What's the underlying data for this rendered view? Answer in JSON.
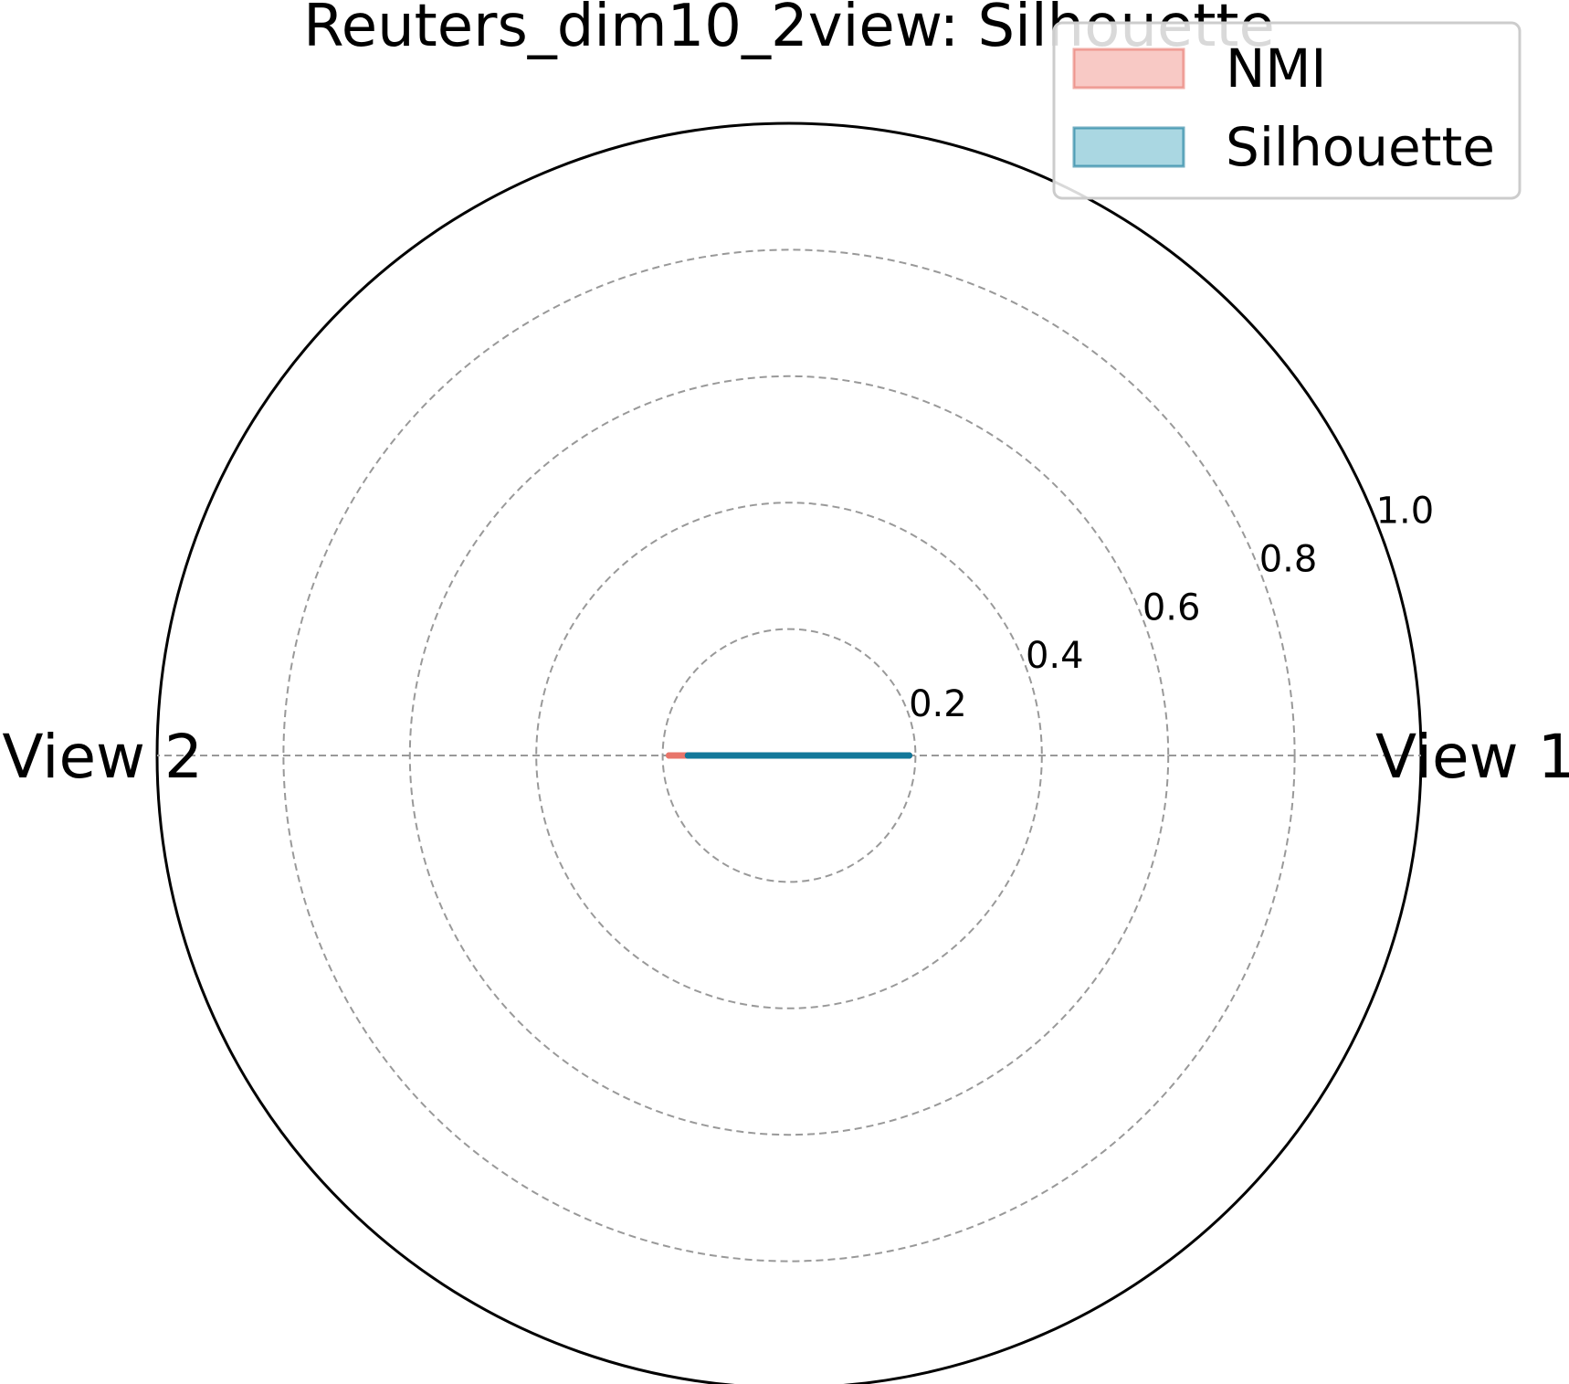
{
  "chart_data": {
    "type": "radar",
    "title": "Reuters_dim10_2view: Silhouette",
    "categories": [
      "View 1",
      "View 2"
    ],
    "series": [
      {
        "name": "NMI",
        "values": [
          0.19,
          0.19
        ]
      },
      {
        "name": "Silhouette",
        "values": [
          0.19,
          0.16
        ]
      }
    ],
    "rlim": [
      0,
      1.0
    ],
    "rticks": [
      "0.2",
      "0.4",
      "0.6",
      "0.8",
      "1.0"
    ],
    "grid": true,
    "legend_position": "top-right"
  },
  "colors": {
    "NMI": {
      "fill": "#f5b7b1",
      "line": "#e8756a"
    },
    "Silhouette": {
      "fill": "#8ec9d8",
      "line": "#12789a"
    },
    "grid": "#999999",
    "outer": "#000000"
  }
}
